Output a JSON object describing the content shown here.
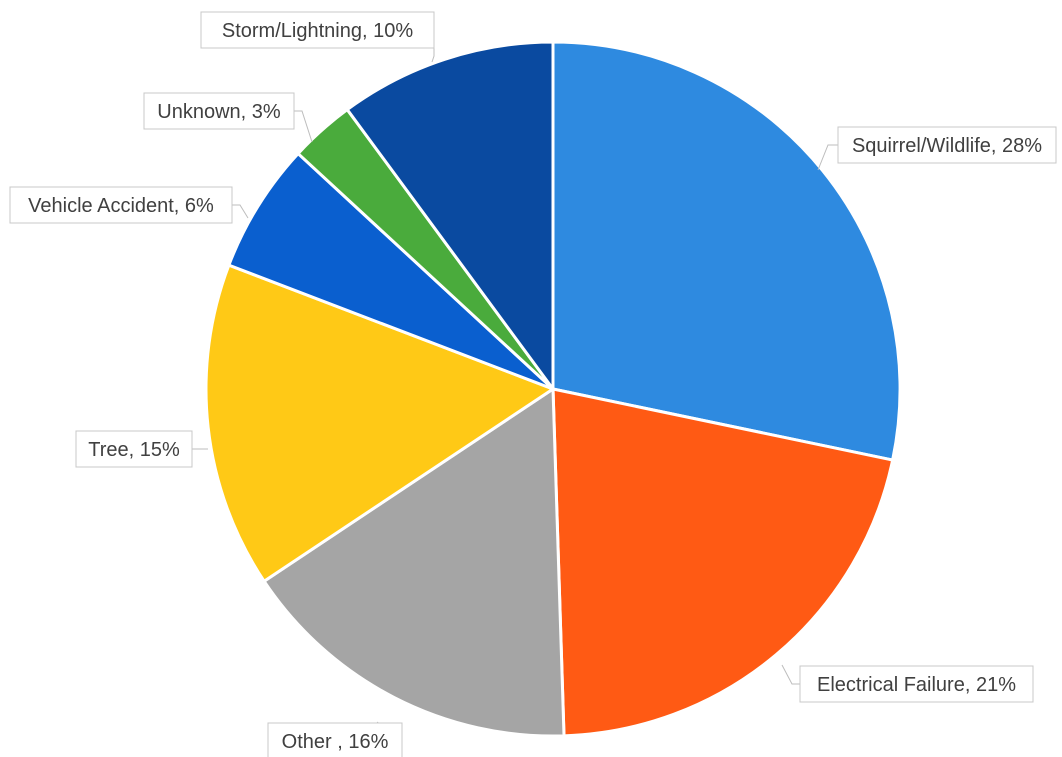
{
  "chart_data": {
    "type": "pie",
    "start_angle_deg": 0,
    "direction": "clockwise",
    "slices": [
      {
        "label": "Squirrel/Wildlife, 28%",
        "category": "Squirrel/Wildlife",
        "value": 28,
        "color": "#2e8ae0"
      },
      {
        "label": "Electrical Failure, 21%",
        "category": "Electrical Failure",
        "value": 21,
        "color": "#ff5a14"
      },
      {
        "label": "Other , 16%",
        "category": "Other",
        "value": 16,
        "color": "#a5a5a5"
      },
      {
        "label": "Tree, 15%",
        "category": "Tree",
        "value": 15,
        "color": "#ffc916"
      },
      {
        "label": "Vehicle Accident, 6%",
        "category": "Vehicle Accident",
        "value": 6,
        "color": "#0a5fcf"
      },
      {
        "label": "Unknown, 3%",
        "category": "Unknown",
        "value": 3,
        "color": "#4aab3c"
      },
      {
        "label": "Storm/Lightning, 10%",
        "category": "Storm/Lightning",
        "value": 10,
        "color": "#0a4aa0"
      }
    ]
  }
}
